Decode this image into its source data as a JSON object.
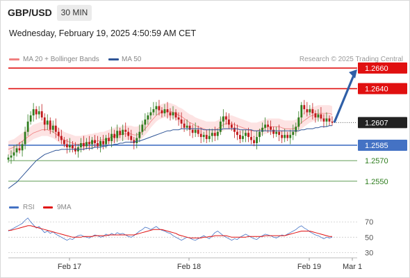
{
  "header": {
    "pair": "GBP/USD",
    "timeframe": "30 MIN",
    "datetime": "Wednesday, February 19, 2025 4:50:59 AM CET",
    "copyright": "Research © 2025 Trading Central"
  },
  "legend": {
    "price_items": [
      {
        "label": "MA 20 + Bollinger Bands",
        "color": "#f08080"
      },
      {
        "label": "MA 50",
        "color": "#2f5597"
      }
    ],
    "rsi_items": [
      {
        "label": "RSI",
        "color": "#4472c4"
      },
      {
        "label": "9MA",
        "color": "#e01010"
      }
    ]
  },
  "colors": {
    "resistance": "#e01010",
    "support": "#4472c4",
    "target": "#2e7d1e",
    "current": "#222222",
    "arrow": "#2f5fa7",
    "up_candle": "#2e7d1e",
    "down_candle": "#c0181b",
    "band_fill": "#fde3e3"
  },
  "chart_data": [
    {
      "type": "candlestick",
      "title": "GBP/USD 30 MIN",
      "x_ticks": [
        "Feb 17",
        "Feb 18",
        "Feb 19",
        "Mar 1"
      ],
      "ylim": [
        1.2537,
        1.2664
      ],
      "levels": [
        {
          "value": 1.266,
          "label": "1.2660",
          "kind": "resistance"
        },
        {
          "value": 1.264,
          "label": "1.2640",
          "kind": "resistance"
        },
        {
          "value": 1.2607,
          "label": "1.2607",
          "kind": "current"
        },
        {
          "value": 1.2585,
          "label": "1.2585",
          "kind": "support"
        },
        {
          "value": 1.257,
          "label": "1.2570",
          "kind": "target"
        },
        {
          "value": 1.255,
          "label": "1.2550",
          "kind": "target"
        }
      ],
      "close": [
        1.2573,
        1.2575,
        1.2578,
        1.2582,
        1.258,
        1.2586,
        1.2598,
        1.2608,
        1.2614,
        1.262,
        1.2615,
        1.2618,
        1.2612,
        1.2605,
        1.2609,
        1.26,
        1.2604,
        1.2598,
        1.2594,
        1.259,
        1.2586,
        1.2583,
        1.2585,
        1.2582,
        1.2579,
        1.2583,
        1.2587,
        1.2584,
        1.2588,
        1.2586,
        1.259,
        1.2587,
        1.2584,
        1.2589,
        1.2586,
        1.2592,
        1.2589,
        1.2596,
        1.2592,
        1.2599,
        1.2595,
        1.26,
        1.2598,
        1.2594,
        1.259,
        1.2587,
        1.2592,
        1.2598,
        1.2605,
        1.261,
        1.2614,
        1.2617,
        1.262,
        1.2623,
        1.2619,
        1.2616,
        1.262,
        1.2617,
        1.2614,
        1.2617,
        1.2612,
        1.261,
        1.2606,
        1.2602,
        1.2604,
        1.26,
        1.2597,
        1.26,
        1.2596,
        1.2593,
        1.2595,
        1.2591,
        1.2594,
        1.2597,
        1.2594,
        1.2598,
        1.2608,
        1.2613,
        1.261,
        1.2605,
        1.2602,
        1.2598,
        1.2595,
        1.2591,
        1.2594,
        1.2597,
        1.2593,
        1.259,
        1.2587,
        1.2593,
        1.2598,
        1.2602,
        1.2605,
        1.2603,
        1.26,
        1.2596,
        1.2598,
        1.2595,
        1.2592,
        1.2595,
        1.2592,
        1.2595,
        1.2598,
        1.2603,
        1.2612,
        1.2624,
        1.262,
        1.2617,
        1.262,
        1.2616,
        1.2612,
        1.2615,
        1.2611,
        1.2608,
        1.2611,
        1.2608,
        1.2607
      ],
      "ma20_lower": [
        1.2575,
        1.2576,
        1.2577,
        1.2579,
        1.2581,
        1.2583,
        1.2585,
        1.2587,
        1.2589,
        1.2591,
        1.2592,
        1.2593,
        1.2594,
        1.2594,
        1.2594,
        1.2593,
        1.2592,
        1.259,
        1.2588,
        1.2586,
        1.2584,
        1.2583,
        1.2582,
        1.2581,
        1.258,
        1.258,
        1.258,
        1.2581,
        1.2581,
        1.2582,
        1.2582,
        1.2583,
        1.2583,
        1.2584,
        1.2584,
        1.2585,
        1.2586,
        1.2587,
        1.2588,
        1.2589,
        1.2589,
        1.259,
        1.259,
        1.259,
        1.259,
        1.2589,
        1.2589,
        1.259,
        1.2592,
        1.2595,
        1.2598,
        1.2602,
        1.2605,
        1.2608,
        1.261,
        1.2611,
        1.2612,
        1.2612,
        1.2612,
        1.2611,
        1.261,
        1.2608,
        1.2607,
        1.2605,
        1.2603,
        1.2601,
        1.26,
        1.2598,
        1.2597,
        1.2596,
        1.2595,
        1.2594,
        1.2594,
        1.2594,
        1.2594,
        1.2595,
        1.2597,
        1.2599,
        1.26,
        1.26,
        1.26,
        1.2599,
        1.2598,
        1.2597,
        1.2596,
        1.2595,
        1.2594,
        1.2593,
        1.2593,
        1.2593,
        1.2594,
        1.2595,
        1.2596,
        1.2597,
        1.2597,
        1.2597,
        1.2597,
        1.2597,
        1.2596,
        1.2595,
        1.2595,
        1.2595,
        1.2595,
        1.2596,
        1.2598,
        1.2601,
        1.2603,
        1.2605,
        1.2607,
        1.2608,
        1.2609,
        1.261,
        1.261,
        1.261,
        1.261,
        1.261,
        1.2609
      ],
      "ma50": [
        1.2543,
        1.2545,
        1.2547,
        1.2549,
        1.2552,
        1.2555,
        1.2558,
        1.2561,
        1.2564,
        1.2567,
        1.257,
        1.2572,
        1.2574,
        1.2576,
        1.2577,
        1.2578,
        1.2579,
        1.258,
        1.258,
        1.2581,
        1.2581,
        1.2581,
        1.2581,
        1.2581,
        1.2581,
        1.2581,
        1.2581,
        1.2581,
        1.2582,
        1.2582,
        1.2582,
        1.2583,
        1.2583,
        1.2583,
        1.2584,
        1.2584,
        1.2585,
        1.2585,
        1.2586,
        1.2586,
        1.2587,
        1.2587,
        1.2588,
        1.2588,
        1.2588,
        1.2588,
        1.2589,
        1.2589,
        1.259,
        1.2591,
        1.2592,
        1.2593,
        1.2594,
        1.2595,
        1.2596,
        1.2597,
        1.2598,
        1.2599,
        1.2599,
        1.26,
        1.26,
        1.26,
        1.2601,
        1.2601,
        1.2601,
        1.2601,
        1.2601,
        1.2601,
        1.2601,
        1.2601,
        1.26,
        1.26,
        1.26,
        1.26,
        1.26,
        1.26,
        1.26,
        1.2601,
        1.2601,
        1.2601,
        1.2601,
        1.2601,
        1.2601,
        1.26,
        1.26,
        1.26,
        1.26,
        1.26,
        1.2599,
        1.2599,
        1.2599,
        1.2599,
        1.2599,
        1.2599,
        1.2599,
        1.2599,
        1.2599,
        1.2599,
        1.2599,
        1.2599,
        1.2599,
        1.2599,
        1.2599,
        1.2599,
        1.2599,
        1.26,
        1.26,
        1.2601,
        1.2601,
        1.2601,
        1.2602,
        1.2602,
        1.2603,
        1.2603,
        1.2603,
        1.2604,
        1.2604
      ],
      "projection": {
        "from": 1.2607,
        "to": 1.266
      }
    },
    {
      "type": "line",
      "title": "RSI",
      "y_ticks": [
        70,
        50,
        30
      ],
      "ylim": [
        24,
        82
      ],
      "series": [
        {
          "name": "RSI",
          "values": [
            58,
            60,
            62,
            64,
            66,
            68,
            72,
            75,
            70,
            66,
            62,
            64,
            60,
            56,
            58,
            55,
            57,
            54,
            52,
            50,
            48,
            46,
            48,
            47,
            50,
            52,
            53,
            51,
            50,
            49,
            51,
            53,
            52,
            50,
            51,
            54,
            52,
            55,
            53,
            56,
            54,
            55,
            53,
            51,
            50,
            52,
            55,
            58,
            60,
            63,
            62,
            60,
            62,
            64,
            61,
            59,
            58,
            56,
            55,
            52,
            50,
            48,
            46,
            48,
            50,
            49,
            47,
            46,
            48,
            50,
            52,
            50,
            48,
            52,
            56,
            58,
            55,
            52,
            50,
            48,
            46,
            48,
            47,
            50,
            52,
            54,
            52,
            50,
            48,
            47,
            50,
            52,
            54,
            53,
            52,
            50,
            49,
            51,
            53,
            52,
            54,
            56,
            58,
            60,
            63,
            65,
            62,
            60,
            57,
            55,
            53,
            52,
            50,
            48,
            50,
            49,
            50
          ]
        },
        {
          "name": "9MA",
          "values": [
            59,
            59,
            60,
            61,
            62,
            63,
            64,
            65,
            65,
            64,
            63,
            62,
            61,
            60,
            59,
            58,
            57,
            56,
            55,
            54,
            53,
            52,
            51,
            50,
            50,
            50,
            50,
            51,
            51,
            51,
            51,
            52,
            52,
            52,
            52,
            52,
            53,
            53,
            53,
            53,
            53,
            53,
            53,
            53,
            53,
            53,
            54,
            55,
            56,
            57,
            58,
            59,
            60,
            60,
            60,
            60,
            59,
            58,
            57,
            56,
            55,
            53,
            52,
            51,
            50,
            49,
            49,
            49,
            49,
            49,
            50,
            50,
            51,
            51,
            52,
            52,
            52,
            52,
            52,
            51,
            50,
            50,
            50,
            50,
            50,
            50,
            51,
            51,
            51,
            51,
            51,
            51,
            52,
            52,
            52,
            52,
            52,
            52,
            52,
            52,
            53,
            54,
            55,
            56,
            57,
            58,
            58,
            58,
            58,
            57,
            56,
            55,
            54,
            53,
            52,
            51,
            51
          ]
        }
      ]
    }
  ]
}
